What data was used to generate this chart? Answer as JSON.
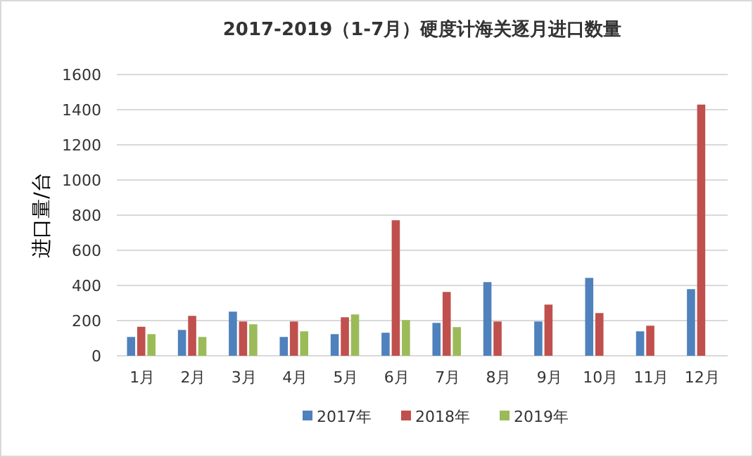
{
  "chart_data": {
    "type": "bar",
    "title": "2017-2019（1-7月）硬度计海关逐月进口数量",
    "ylabel": "进口量/台",
    "categories": [
      "1月",
      "2月",
      "3月",
      "4月",
      "5月",
      "6月",
      "7月",
      "8月",
      "9月",
      "10月",
      "11月",
      "12月"
    ],
    "series": [
      {
        "name": "2017年",
        "color": "#4f81bd",
        "values": [
          107,
          147,
          251,
          107,
          123,
          131,
          187,
          419,
          195,
          443,
          139,
          379
        ]
      },
      {
        "name": "2018年",
        "color": "#c0504d",
        "values": [
          165,
          227,
          195,
          195,
          219,
          771,
          363,
          195,
          291,
          243,
          171,
          1429
        ]
      },
      {
        "name": "2019年",
        "color": "#9bbb59",
        "values": [
          123,
          107,
          179,
          139,
          235,
          203,
          163,
          null,
          null,
          null,
          null,
          null
        ]
      }
    ],
    "ylim": [
      0,
      1600
    ],
    "yticks": [
      0,
      200,
      400,
      600,
      800,
      1000,
      1200,
      1400,
      1600
    ],
    "grid": "y",
    "legend": "bottom"
  }
}
